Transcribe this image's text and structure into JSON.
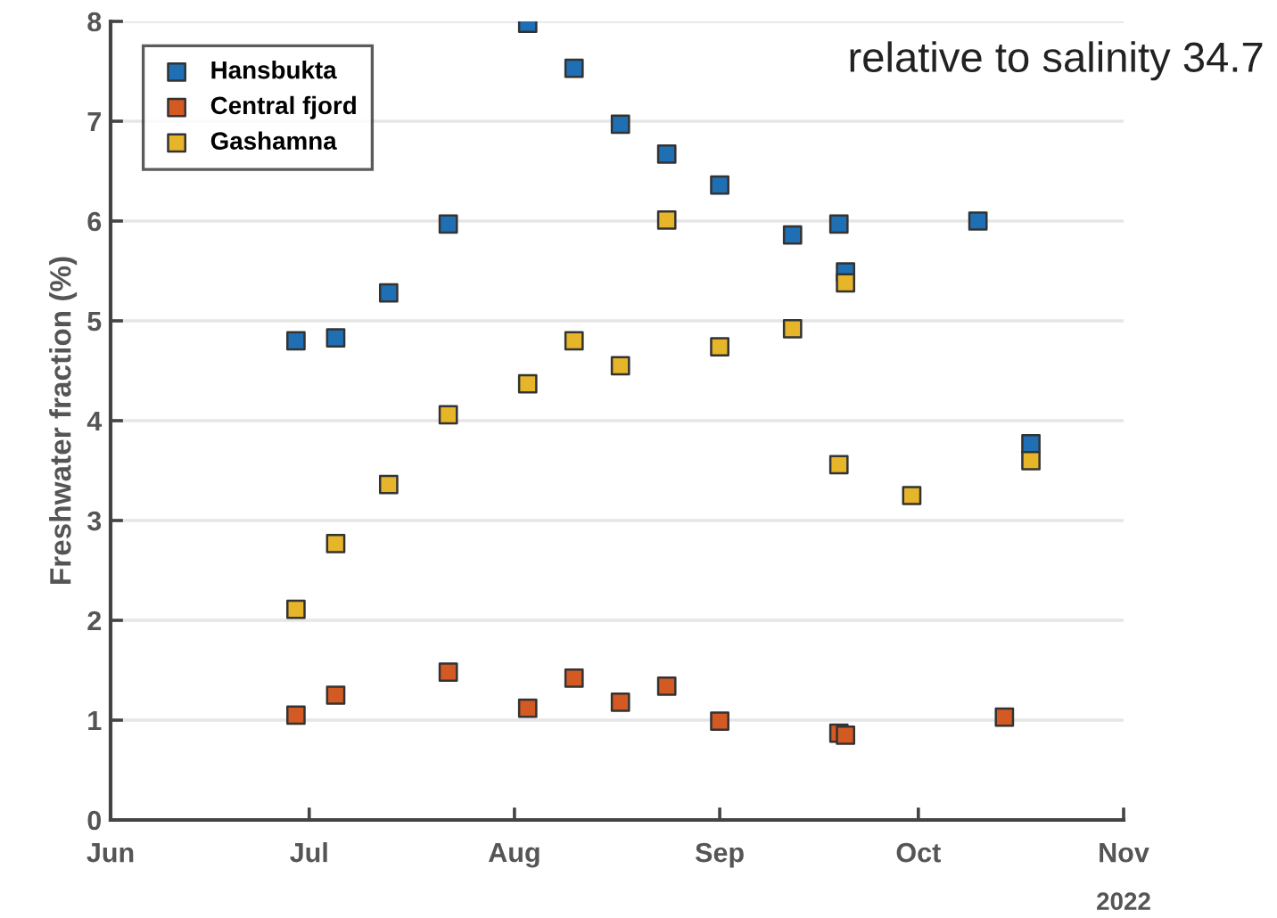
{
  "chart_data": {
    "type": "scatter",
    "ylabel": "Freshwater fraction (%)",
    "xlabel": "2022",
    "annotations": [
      "relative to salinity 34.7"
    ],
    "marker": "square",
    "grid": "y",
    "legend": "top left",
    "xlim": [
      "2022-06-01",
      "2022-11-01"
    ],
    "xticks": [
      {
        "value": "2022-06-01",
        "label": "Jun"
      },
      {
        "value": "2022-07-01",
        "label": "Jul"
      },
      {
        "value": "2022-08-01",
        "label": "Aug"
      },
      {
        "value": "2022-09-01",
        "label": "Sep"
      },
      {
        "value": "2022-10-01",
        "label": "Oct"
      },
      {
        "value": "2022-11-01",
        "label": "Nov"
      }
    ],
    "ylim": [
      0,
      8
    ],
    "yticks": [
      0,
      1,
      2,
      3,
      4,
      5,
      6,
      7,
      8
    ],
    "series": [
      {
        "name": "Hansbukta",
        "color": "#1f6fb5",
        "x": [
          "2022-06-29",
          "2022-07-05",
          "2022-07-13",
          "2022-07-22",
          "2022-08-03",
          "2022-08-10",
          "2022-08-17",
          "2022-08-24",
          "2022-09-01",
          "2022-09-12",
          "2022-09-19",
          "2022-09-20",
          "2022-10-10",
          "2022-10-18"
        ],
        "values": [
          4.8,
          4.83,
          5.28,
          5.97,
          7.98,
          7.53,
          6.97,
          6.67,
          6.36,
          5.86,
          5.97,
          5.49,
          6.0,
          3.77
        ]
      },
      {
        "name": "Central fjord",
        "color": "#d35a22",
        "x": [
          "2022-06-29",
          "2022-07-05",
          "2022-07-22",
          "2022-08-03",
          "2022-08-10",
          "2022-08-17",
          "2022-08-24",
          "2022-09-01",
          "2022-09-19",
          "2022-09-20",
          "2022-10-14"
        ],
        "values": [
          1.05,
          1.25,
          1.48,
          1.12,
          1.42,
          1.18,
          1.34,
          0.99,
          0.87,
          0.85,
          1.03
        ]
      },
      {
        "name": "Gashamna",
        "color": "#e6b52a",
        "x": [
          "2022-06-29",
          "2022-07-05",
          "2022-07-13",
          "2022-07-22",
          "2022-08-03",
          "2022-08-10",
          "2022-08-17",
          "2022-08-24",
          "2022-09-01",
          "2022-09-12",
          "2022-09-19",
          "2022-09-20",
          "2022-09-30",
          "2022-10-18"
        ],
        "values": [
          2.11,
          2.77,
          3.36,
          4.06,
          4.37,
          4.8,
          4.55,
          6.01,
          4.74,
          4.92,
          3.56,
          5.38,
          3.25,
          3.6
        ]
      }
    ]
  }
}
